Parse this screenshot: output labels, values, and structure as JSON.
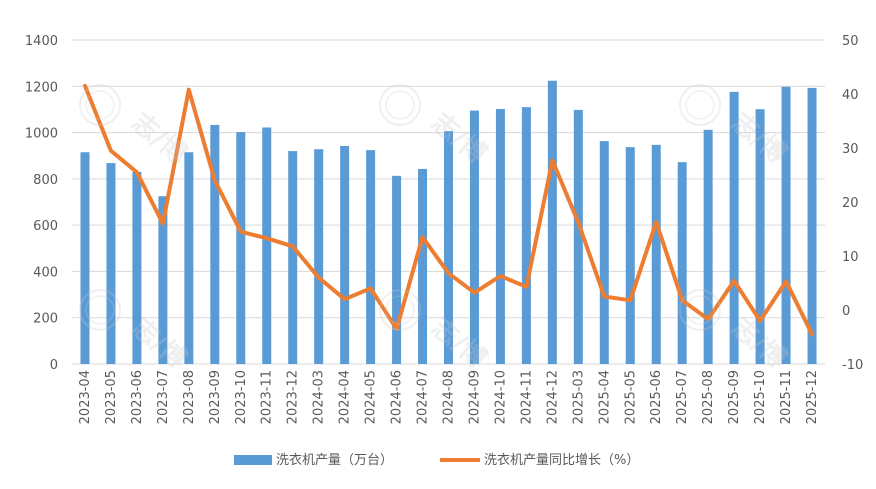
{
  "chart_data": {
    "type": "bar",
    "categories": [
      "2023-04",
      "2023-05",
      "2023-06",
      "2023-07",
      "2023-08",
      "2023-09",
      "2023-10",
      "2023-11",
      "2023-12",
      "2024-03",
      "2024-04",
      "2024-05",
      "2024-06",
      "2024-07",
      "2024-08",
      "2024-09",
      "2024-10",
      "2024-11",
      "2024-12",
      "2025-03",
      "2025-04",
      "2025-05",
      "2025-06",
      "2025-07",
      "2025-08",
      "2025-09",
      "2025-10",
      "2025-11",
      "2025-12"
    ],
    "series": [
      {
        "name": "洗衣机产量（万台）",
        "type": "bar",
        "axis": "left",
        "color": "#5B9BD5",
        "values": [
          915,
          868,
          830,
          725,
          915,
          1033,
          1002,
          1022,
          920,
          928,
          942,
          924,
          813,
          843,
          1006,
          1095,
          1102,
          1110,
          1224,
          1098,
          963,
          937,
          947,
          872,
          1012,
          1176,
          1101,
          1198,
          1193
        ]
      },
      {
        "name": "洗衣机产量同比增长（%）",
        "type": "line",
        "axis": "right",
        "color": "#ED7D31",
        "values": [
          41.5,
          29.5,
          25.5,
          16.0,
          40.8,
          24.0,
          14.5,
          13.3,
          11.8,
          6.0,
          2.0,
          4.0,
          -3.5,
          13.5,
          6.8,
          3.2,
          6.3,
          4.3,
          27.7,
          16.2,
          2.5,
          1.8,
          16.3,
          1.8,
          -1.7,
          5.4,
          -2.0,
          5.3,
          -4.5
        ]
      }
    ],
    "y_left": {
      "min": 0,
      "max": 1400,
      "ticks": [
        "0",
        "200",
        "400",
        "600",
        "800",
        "1000",
        "1200",
        "1400"
      ]
    },
    "y_right": {
      "min": -10,
      "max": 50,
      "ticks": [
        "-10",
        "0",
        "10",
        "20",
        "30",
        "40",
        "50"
      ]
    },
    "grid": true,
    "legend_position": "bottom",
    "watermark": "志/博"
  }
}
